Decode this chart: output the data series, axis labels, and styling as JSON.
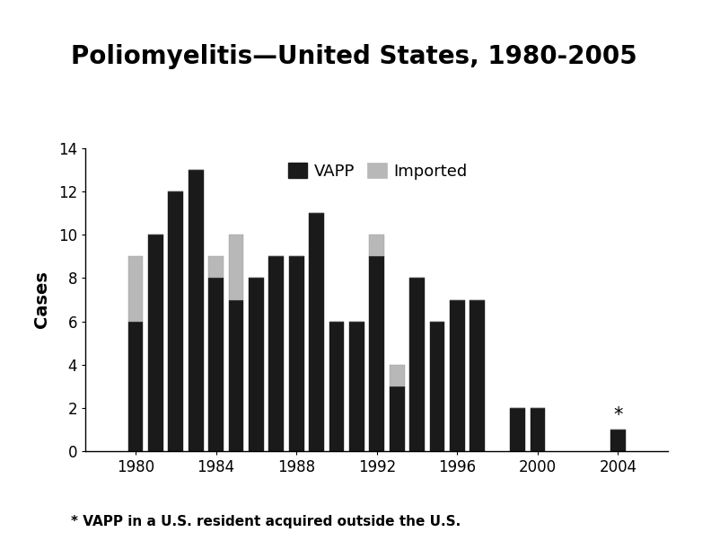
{
  "title": "Poliomyelitis—United States, 1980-2005",
  "ylabel": "Cases",
  "footnote": "* VAPP in a U.S. resident acquired outside the U.S.",
  "years": [
    1980,
    1981,
    1982,
    1983,
    1984,
    1985,
    1986,
    1987,
    1988,
    1989,
    1990,
    1991,
    1992,
    1993,
    1994,
    1995,
    1996,
    1997,
    1999,
    2000,
    2004
  ],
  "vapp": [
    6,
    10,
    12,
    13,
    8,
    7,
    8,
    9,
    9,
    11,
    6,
    6,
    9,
    3,
    8,
    6,
    7,
    7,
    2,
    2,
    1
  ],
  "imported": [
    3,
    0,
    0,
    0,
    1,
    3,
    0,
    0,
    0,
    0,
    0,
    0,
    1,
    1,
    0,
    0,
    0,
    0,
    0,
    0,
    0
  ],
  "star_year": 2004,
  "vapp_color": "#1a1a1a",
  "imported_color": "#b8b8b8",
  "bg_color": "#ffffff",
  "ylim": [
    0,
    14
  ],
  "yticks": [
    0,
    2,
    4,
    6,
    8,
    10,
    12,
    14
  ],
  "xtick_labels": [
    "1980",
    "1984",
    "1988",
    "1992",
    "1996",
    "2000",
    "2004"
  ],
  "xtick_positions": [
    1980,
    1984,
    1988,
    1992,
    1996,
    2000,
    2004
  ],
  "title_fontsize": 20,
  "axis_label_fontsize": 14,
  "tick_fontsize": 12,
  "legend_fontsize": 13,
  "footnote_fontsize": 11,
  "bar_width": 0.75,
  "xlim": [
    1977.5,
    2006.5
  ]
}
